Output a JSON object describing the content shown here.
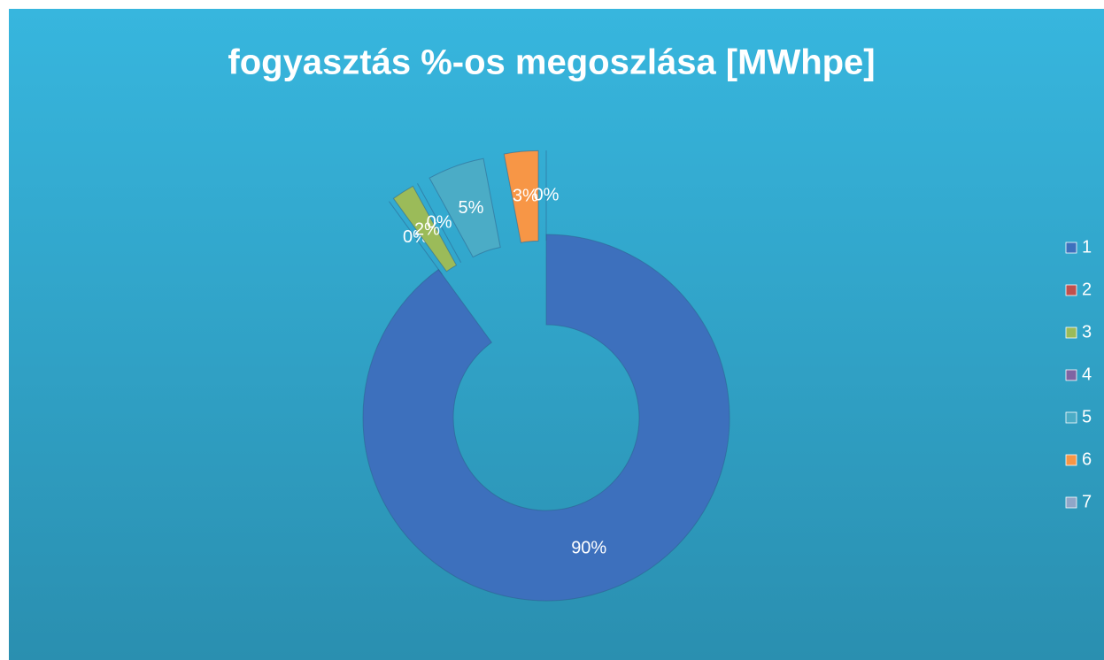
{
  "chart_data": {
    "type": "doughnut",
    "title": "fogyasztás  %-os megoszlása [MWhpe]",
    "categories": [
      "1",
      "2",
      "3",
      "4",
      "5",
      "6",
      "7"
    ],
    "values": [
      90,
      0,
      2,
      0,
      5,
      3,
      0
    ],
    "value_labels": [
      "90%",
      "0%",
      "2%",
      "0%",
      "5%",
      "3%",
      "0%"
    ],
    "colors": [
      "#3d70bd",
      "#c0504d",
      "#9bbb59",
      "#8064a2",
      "#4bacc6",
      "#f79646",
      "#8fa6c8"
    ],
    "legend": "right"
  }
}
